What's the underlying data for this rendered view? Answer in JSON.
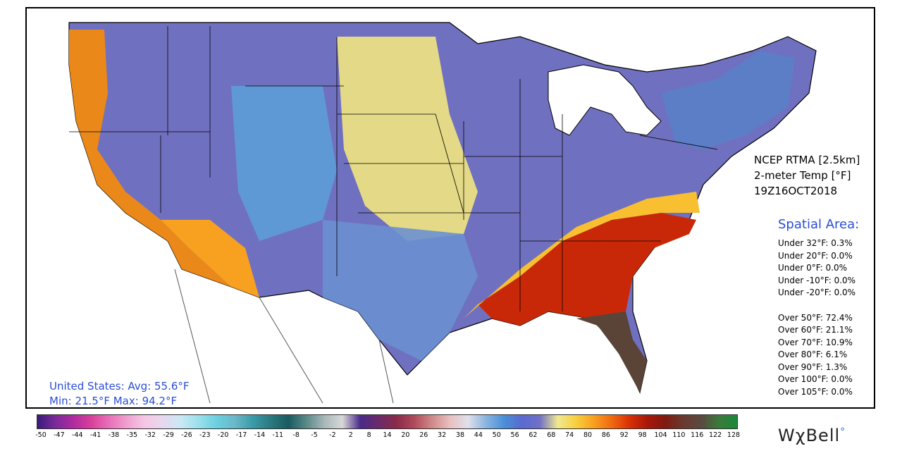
{
  "header": {
    "model": "NCEP RTMA [2.5km]",
    "variable": "2-meter Temp [°F]",
    "valid_time": "19Z16OCT2018"
  },
  "spatial_area": {
    "title": "Spatial Area:",
    "under": [
      {
        "label": "Under 32°F:",
        "value": "0.3%"
      },
      {
        "label": "Under 20°F:",
        "value": "0.0%"
      },
      {
        "label": "Under 0°F:",
        "value": "0.0%"
      },
      {
        "label": "Under -10°F:",
        "value": "0.0%"
      },
      {
        "label": "Under -20°F:",
        "value": "0.0%"
      }
    ],
    "over": [
      {
        "label": "Over 50°F:",
        "value": "72.4%"
      },
      {
        "label": "Over 60°F:",
        "value": "21.1%"
      },
      {
        "label": "Over 70°F:",
        "value": "10.9%"
      },
      {
        "label": "Over 80°F:",
        "value": "6.1%"
      },
      {
        "label": "Over 90°F:",
        "value": "1.3%"
      },
      {
        "label": "Over 100°F:",
        "value": "0.0%"
      },
      {
        "label": "Over 105°F:",
        "value": "0.0%"
      }
    ]
  },
  "stats": {
    "line1": "United States: Avg:  55.6°F",
    "line2": "Min:  21.5°F Max:  94.2°F"
  },
  "colorbar": {
    "ticks": [
      "-50",
      "-47",
      "-44",
      "-41",
      "-38",
      "-35",
      "-32",
      "-29",
      "-26",
      "-23",
      "-20",
      "-17",
      "-14",
      "-11",
      "-8",
      "-5",
      "-2",
      "2",
      "8",
      "14",
      "20",
      "26",
      "32",
      "38",
      "44",
      "50",
      "56",
      "62",
      "68",
      "74",
      "80",
      "86",
      "92",
      "98",
      "104",
      "110",
      "116",
      "122",
      "128"
    ],
    "colors": [
      "#3a1a7a",
      "#7a2a9a",
      "#b02aa0",
      "#d8409a",
      "#e870b8",
      "#f0a0d0",
      "#f5c8e4",
      "#e8d8ee",
      "#c8e8f4",
      "#9ae0ec",
      "#6ad0e0",
      "#6ab8c8",
      "#3a9aa8",
      "#2a7a80",
      "#1a5a60",
      "#5a8a8a",
      "#a8b8b8",
      "#d8d8d8",
      "#4a2a8a",
      "#6a2a6a",
      "#8a2a4a",
      "#b04a5a",
      "#d08a8a",
      "#e8c0c0",
      "#e0e0ea",
      "#8ab4e0",
      "#4a90d8",
      "#5a6ad0",
      "#7070c8",
      "#f0e890",
      "#f8d040",
      "#f8a020",
      "#f06a10",
      "#d83008",
      "#a81808",
      "#801a10",
      "#6a3a30",
      "#5a4a40",
      "#3a7a3a",
      "#1a8a3a"
    ]
  },
  "map": {
    "regions": [
      {
        "name": "west-coast",
        "color": "#f08a10"
      },
      {
        "name": "southwest-desert",
        "color": "#f8a020"
      },
      {
        "name": "great-basin",
        "color": "#6a68c8"
      },
      {
        "name": "rockies",
        "color": "#5aa0d8"
      },
      {
        "name": "plains",
        "color": "#f0e480"
      },
      {
        "name": "midwest",
        "color": "#7070c0"
      },
      {
        "name": "southeast",
        "color": "#c82808"
      },
      {
        "name": "florida",
        "color": "#5a4438"
      },
      {
        "name": "northeast",
        "color": "#5a80c8"
      },
      {
        "name": "texas",
        "color": "#6a90d0"
      }
    ]
  },
  "logo": {
    "text": "WχBell",
    "mark": "°"
  }
}
